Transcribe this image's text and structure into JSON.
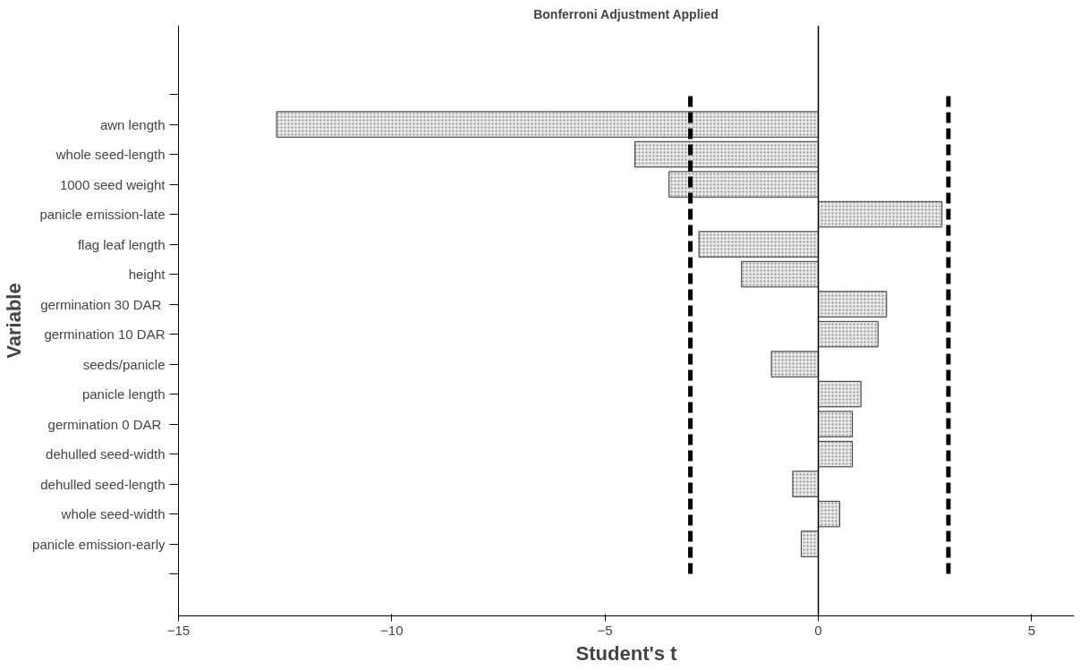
{
  "chart_data": {
    "type": "bar",
    "orientation": "horizontal",
    "title": "Bonferroni Adjustment Applied",
    "xlabel": "Student's t",
    "ylabel": "Variable",
    "categories": [
      null,
      "awn length",
      "whole seed-length",
      "1000 seed weight",
      "panicle emission-late",
      "flag leaf length",
      "height",
      "germination  30 DAR",
      "germination 10 DAR",
      "seeds/panicle",
      "panicle length",
      "germination  0 DAR",
      "dehulled seed-width",
      "dehulled seed-length",
      "whole seed-width",
      "panicle emission-early",
      null
    ],
    "values": [
      null,
      -12.7,
      -4.3,
      -3.5,
      2.9,
      -2.8,
      -1.8,
      1.6,
      1.4,
      -1.1,
      1.0,
      0.8,
      0.8,
      -0.6,
      0.5,
      -0.4,
      null
    ],
    "color": "#e6e6e6",
    "xlim": [
      -15,
      6
    ],
    "xticks": [
      -15,
      -10,
      -5,
      0,
      5
    ],
    "ref_lines": [
      {
        "axis": "x",
        "value": -3.0,
        "color": "#000000",
        "line_style": "dashed"
      },
      {
        "axis": "x",
        "value": 3.05,
        "color": "#000000",
        "line_style": "dashed"
      },
      {
        "axis": "x",
        "value": 0,
        "color": "#000000",
        "line_style": "solid"
      }
    ],
    "grid": false
  }
}
